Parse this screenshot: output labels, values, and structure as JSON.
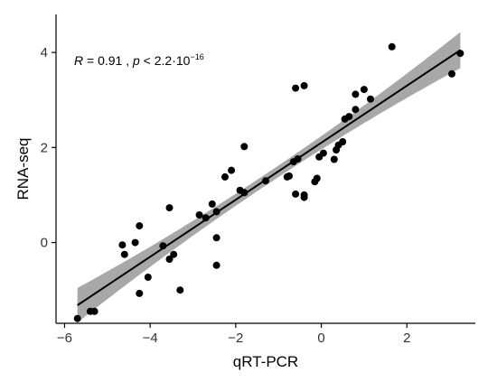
{
  "chart_data": {
    "type": "scatter",
    "title": "",
    "xlabel": "qRT-PCR",
    "ylabel": "RNA-seq",
    "xlim": [
      -6.2,
      3.6
    ],
    "ylim": [
      -1.7,
      4.8
    ],
    "xticks": [
      -6,
      -4,
      -2,
      0,
      2
    ],
    "xtick_labels": [
      "−6",
      "−4",
      "−2",
      "0",
      "2"
    ],
    "yticks": [
      0,
      2,
      4
    ],
    "ytick_labels": [
      "0",
      "2",
      "4"
    ],
    "grid": false,
    "legend": "none",
    "annotation": {
      "r_symbol": "R",
      "r_text": " = 0.91 , ",
      "p_symbol": "p",
      "p_text": " < 2.2·10",
      "p_exponent": "−16"
    },
    "regression": {
      "x_start": -5.7,
      "x_end": 3.25,
      "slope": 0.6,
      "intercept": 2.1,
      "ci_halfwidth_center": 0.12,
      "ci_halfwidth_edge": 0.38,
      "ci_center_x": -1.3
    },
    "points": [
      {
        "x": -5.7,
        "y": -1.6
      },
      {
        "x": -5.4,
        "y": -1.45
      },
      {
        "x": -5.3,
        "y": -1.45
      },
      {
        "x": -4.65,
        "y": -0.05
      },
      {
        "x": -4.6,
        "y": -0.25
      },
      {
        "x": -4.35,
        "y": 0.0
      },
      {
        "x": -4.25,
        "y": 0.35
      },
      {
        "x": -4.25,
        "y": -1.07
      },
      {
        "x": -4.05,
        "y": -0.73
      },
      {
        "x": -3.7,
        "y": -0.07
      },
      {
        "x": -3.55,
        "y": -0.35
      },
      {
        "x": -3.55,
        "y": 0.73
      },
      {
        "x": -3.45,
        "y": -0.25
      },
      {
        "x": -3.3,
        "y": -1.0
      },
      {
        "x": -2.85,
        "y": 0.58
      },
      {
        "x": -2.7,
        "y": 0.52
      },
      {
        "x": -2.55,
        "y": 0.81
      },
      {
        "x": -2.45,
        "y": 0.65
      },
      {
        "x": -2.45,
        "y": 0.1
      },
      {
        "x": -2.45,
        "y": -0.48
      },
      {
        "x": -2.25,
        "y": 1.38
      },
      {
        "x": -2.1,
        "y": 1.52
      },
      {
        "x": -1.9,
        "y": 1.1
      },
      {
        "x": -1.8,
        "y": 1.05
      },
      {
        "x": -1.8,
        "y": 2.02
      },
      {
        "x": -1.3,
        "y": 1.3
      },
      {
        "x": -0.8,
        "y": 1.38
      },
      {
        "x": -0.75,
        "y": 1.4
      },
      {
        "x": -0.65,
        "y": 1.7
      },
      {
        "x": -0.6,
        "y": 1.02
      },
      {
        "x": -0.6,
        "y": 3.25
      },
      {
        "x": -0.55,
        "y": 1.76
      },
      {
        "x": -0.4,
        "y": 0.95
      },
      {
        "x": -0.4,
        "y": 1.0
      },
      {
        "x": -0.4,
        "y": 3.3
      },
      {
        "x": -0.15,
        "y": 1.28
      },
      {
        "x": -0.1,
        "y": 1.35
      },
      {
        "x": -0.05,
        "y": 1.8
      },
      {
        "x": 0.05,
        "y": 1.88
      },
      {
        "x": 0.3,
        "y": 1.75
      },
      {
        "x": 0.35,
        "y": 1.95
      },
      {
        "x": 0.4,
        "y": 2.05
      },
      {
        "x": 0.5,
        "y": 2.12
      },
      {
        "x": 0.55,
        "y": 2.6
      },
      {
        "x": 0.65,
        "y": 2.65
      },
      {
        "x": 0.8,
        "y": 2.8
      },
      {
        "x": 0.8,
        "y": 3.12
      },
      {
        "x": 1.0,
        "y": 3.22
      },
      {
        "x": 1.15,
        "y": 3.02
      },
      {
        "x": 1.65,
        "y": 4.12
      },
      {
        "x": 3.05,
        "y": 3.55
      },
      {
        "x": 3.25,
        "y": 3.98
      }
    ]
  }
}
